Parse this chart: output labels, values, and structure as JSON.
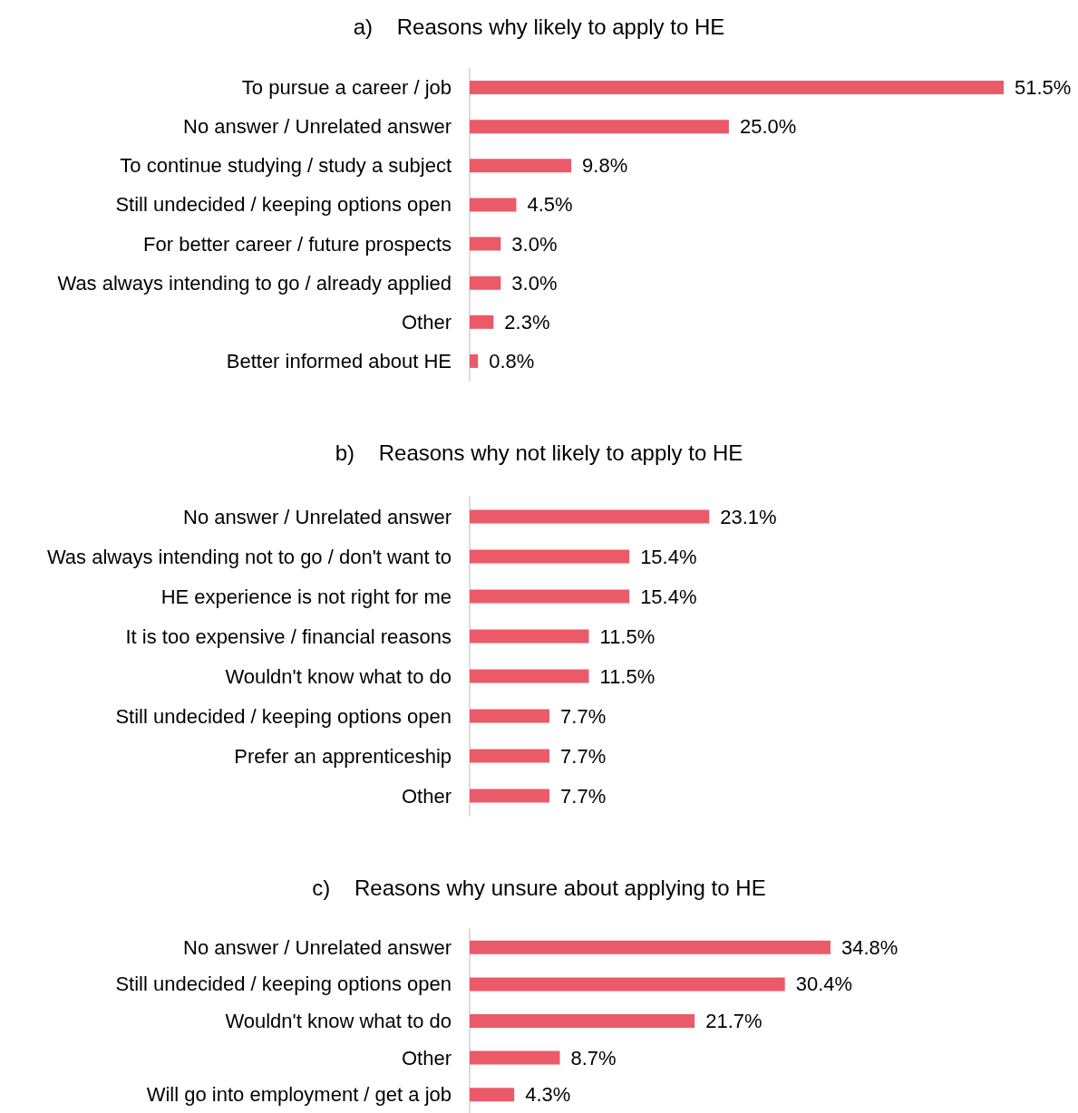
{
  "chart_data": [
    {
      "type": "bar",
      "orientation": "horizontal",
      "title": "a)    Reasons why likely to apply to HE",
      "categories": [
        "To pursue a career / job",
        "No answer / Unrelated answer",
        "To continue studying / study a subject",
        "Still undecided / keeping options open",
        "For better career / future prospects",
        "Was always intending to go / already applied",
        "Other",
        "Better informed about HE"
      ],
      "values": [
        51.5,
        25.0,
        9.8,
        4.5,
        3.0,
        3.0,
        2.3,
        0.8
      ],
      "value_labels": [
        "51.5%",
        "25.0%",
        "9.8%",
        "4.5%",
        "3.0%",
        "3.0%",
        "2.3%",
        "0.8%"
      ],
      "color": "#eb5a68"
    },
    {
      "type": "bar",
      "orientation": "horizontal",
      "title": "b)    Reasons why not likely to apply to HE",
      "categories": [
        "No answer / Unrelated answer",
        "Was always intending not to go / don't want to",
        "HE experience is not right for me",
        "It is too expensive / financial reasons",
        "Wouldn't know what to do",
        "Still undecided / keeping options open",
        "Prefer an apprenticeship",
        "Other"
      ],
      "values": [
        23.1,
        15.4,
        15.4,
        11.5,
        11.5,
        7.7,
        7.7,
        7.7
      ],
      "value_labels": [
        "23.1%",
        "15.4%",
        "15.4%",
        "11.5%",
        "11.5%",
        "7.7%",
        "7.7%",
        "7.7%"
      ],
      "color": "#eb5a68"
    },
    {
      "type": "bar",
      "orientation": "horizontal",
      "title": "c)    Reasons why unsure about applying to HE",
      "categories": [
        "No answer / Unrelated answer",
        "Still undecided / keeping options open",
        "Wouldn't know what to do",
        "Other",
        "Will go into employment / get a job"
      ],
      "values": [
        34.8,
        30.4,
        21.7,
        8.7,
        4.3
      ],
      "value_labels": [
        "34.8%",
        "30.4%",
        "21.7%",
        "8.7%",
        "4.3%"
      ],
      "color": "#eb5a68"
    }
  ]
}
